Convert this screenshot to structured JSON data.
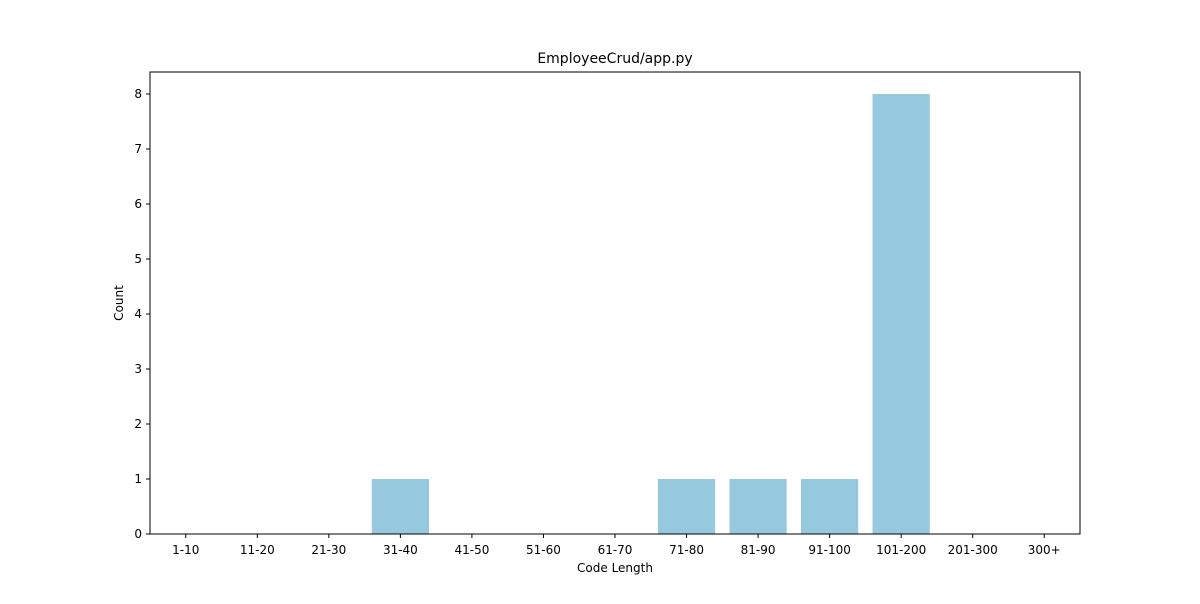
{
  "chart_data": {
    "type": "bar",
    "title": "EmployeeCrud/app.py",
    "xlabel": "Code Length",
    "ylabel": "Count",
    "categories": [
      "1-10",
      "11-20",
      "21-30",
      "31-40",
      "41-50",
      "51-60",
      "61-70",
      "71-80",
      "81-90",
      "91-100",
      "101-200",
      "201-300",
      "300+"
    ],
    "values": [
      0,
      0,
      0,
      1,
      0,
      0,
      0,
      1,
      1,
      1,
      8,
      0,
      0
    ],
    "ylim": [
      0,
      8.4
    ],
    "yticks": [
      0,
      1,
      2,
      3,
      4,
      5,
      6,
      7,
      8
    ],
    "grid": false,
    "legend": "none",
    "bar_color": "#96c9dd",
    "axis_color": "#000000"
  }
}
